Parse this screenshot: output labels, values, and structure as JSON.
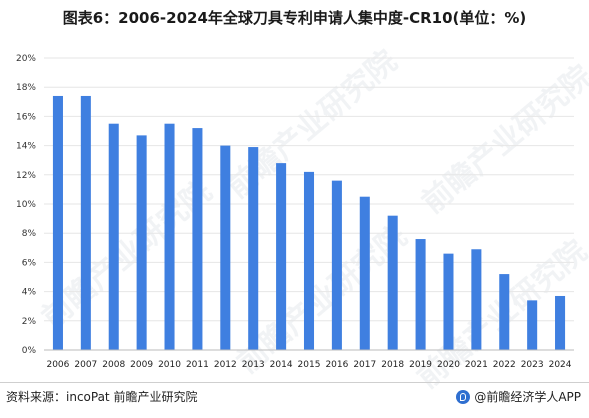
{
  "watermark": "前瞻产业研究院",
  "footer": {
    "source": "资料来源：incoPat 前瞻产业研究院",
    "brand": "@前瞻经济学人APP"
  },
  "colors": {
    "bar": "#3f7fe0",
    "grid": "#e6e6e6",
    "axis": "#bbbbbb"
  },
  "chart_data": {
    "type": "bar",
    "title": "图表6：2006-2024年全球刀具专利申请人集中度-CR10(单位：%)",
    "xlabel": "",
    "ylabel": "",
    "ylim": [
      0,
      20
    ],
    "yticks": [
      "0%",
      "2%",
      "4%",
      "6%",
      "8%",
      "10%",
      "12%",
      "14%",
      "16%",
      "18%",
      "20%"
    ],
    "categories": [
      "2006",
      "2007",
      "2008",
      "2009",
      "2010",
      "2011",
      "2012",
      "2013",
      "2014",
      "2015",
      "2016",
      "2017",
      "2018",
      "2019",
      "2020",
      "2021",
      "2022",
      "2023",
      "2024"
    ],
    "values": [
      17.4,
      17.4,
      15.5,
      14.7,
      15.5,
      15.2,
      14.0,
      13.9,
      12.8,
      12.2,
      11.6,
      10.5,
      9.2,
      7.6,
      6.6,
      6.9,
      5.2,
      3.4,
      3.7
    ],
    "grid": true,
    "legend": "none"
  }
}
